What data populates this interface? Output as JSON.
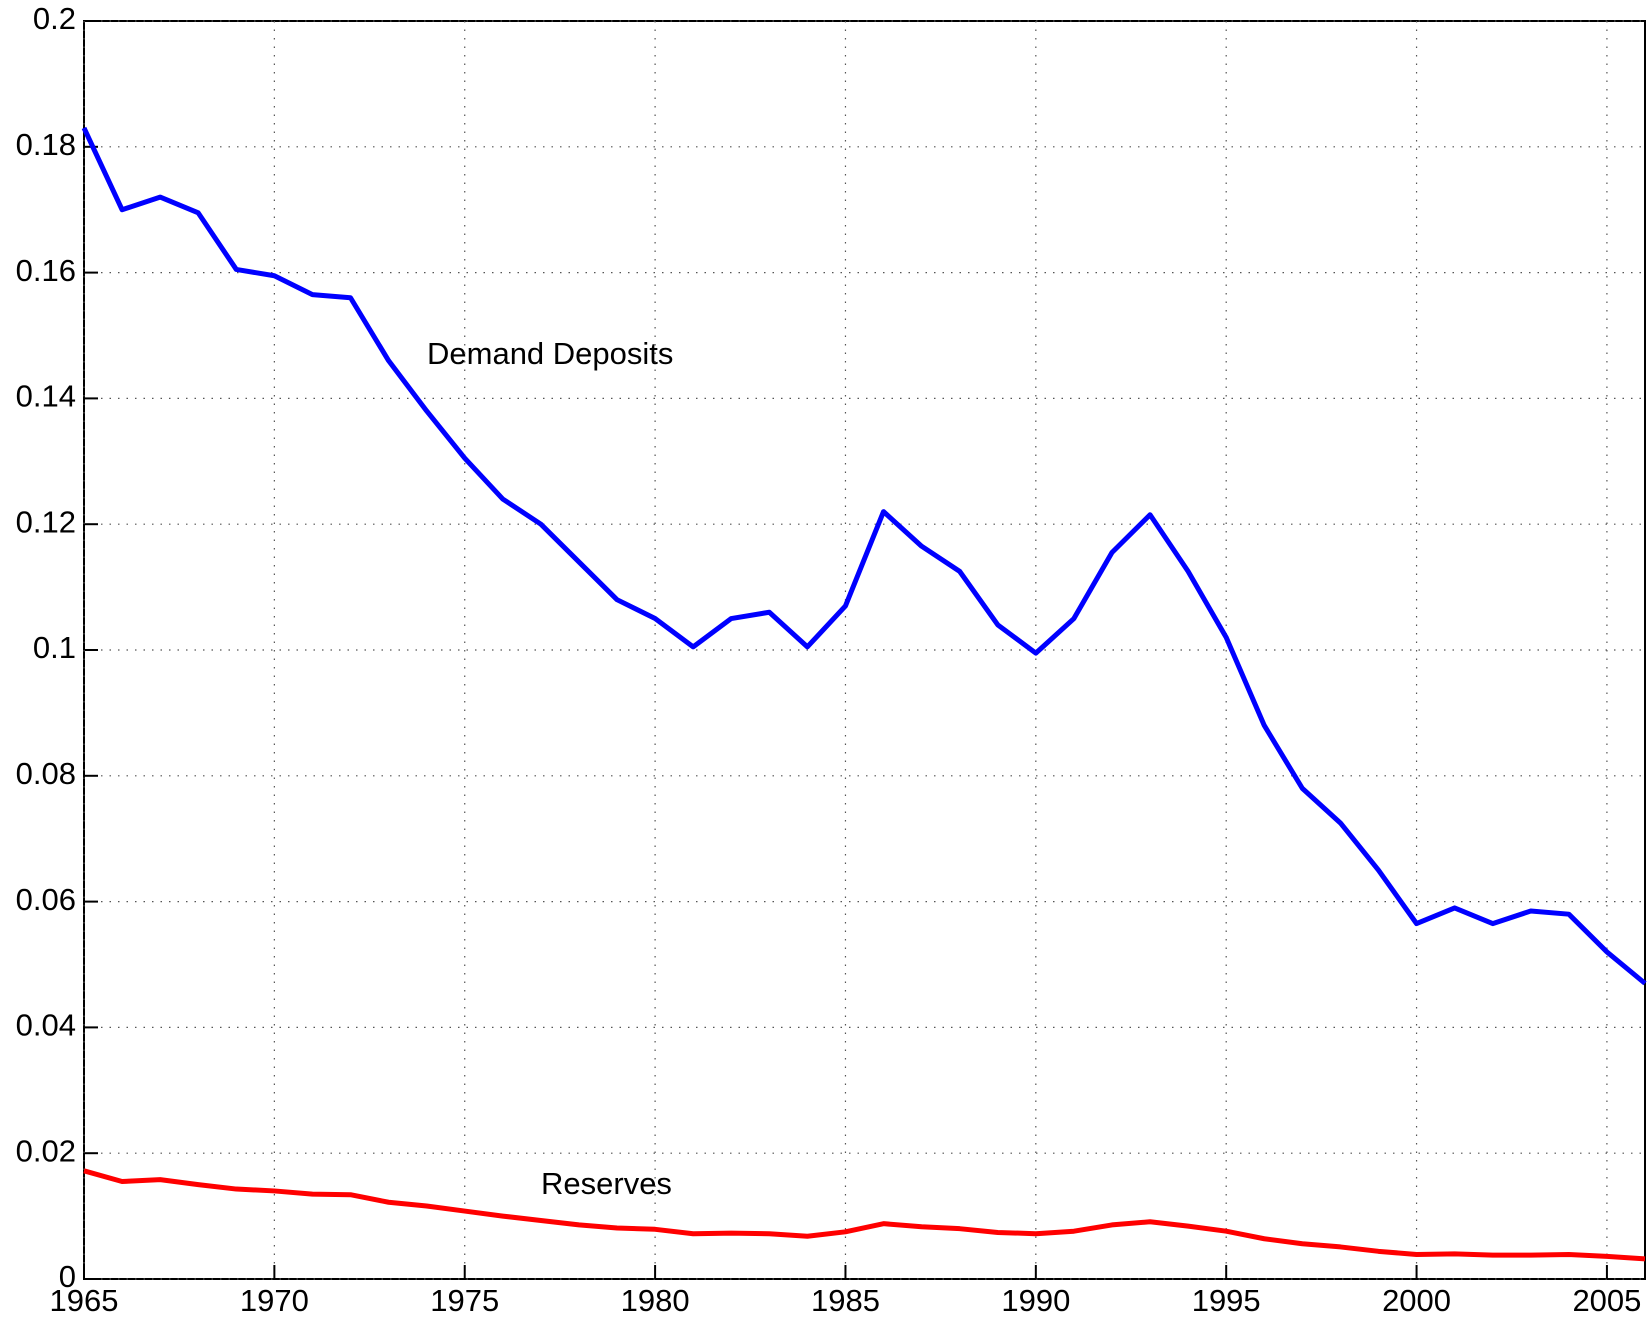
{
  "chart_data": {
    "type": "line",
    "x": [
      1965,
      1966,
      1967,
      1968,
      1969,
      1970,
      1971,
      1972,
      1973,
      1974,
      1975,
      1976,
      1977,
      1978,
      1979,
      1980,
      1981,
      1982,
      1983,
      1984,
      1985,
      1986,
      1987,
      1988,
      1989,
      1990,
      1991,
      1992,
      1993,
      1994,
      1995,
      1996,
      1997,
      1998,
      1999,
      2000,
      2001,
      2002,
      2003,
      2004,
      2005,
      2006
    ],
    "series": [
      {
        "name": "Demand Deposits",
        "color": "#0000ff",
        "values": [
          0.183,
          0.17,
          0.172,
          0.1695,
          0.1605,
          0.1595,
          0.1565,
          0.156,
          0.146,
          0.138,
          0.1305,
          0.124,
          0.12,
          0.114,
          0.108,
          0.105,
          0.1005,
          0.105,
          0.106,
          0.1005,
          0.107,
          0.122,
          0.1165,
          0.1125,
          0.104,
          0.0995,
          0.105,
          0.1155,
          0.1215,
          0.1125,
          0.102,
          0.088,
          0.078,
          0.0725,
          0.065,
          0.0565,
          0.059,
          0.0565,
          0.0585,
          0.058,
          0.052,
          0.047
        ]
      },
      {
        "name": "Reserves",
        "color": "#ff0000",
        "values": [
          0.0172,
          0.0155,
          0.0158,
          0.015,
          0.0143,
          0.014,
          0.0135,
          0.0134,
          0.0122,
          0.0116,
          0.0108,
          0.01,
          0.0093,
          0.0086,
          0.0081,
          0.0079,
          0.0072,
          0.0073,
          0.0072,
          0.0068,
          0.0075,
          0.0088,
          0.0083,
          0.008,
          0.0074,
          0.0072,
          0.0076,
          0.0086,
          0.0091,
          0.0084,
          0.0076,
          0.0064,
          0.0056,
          0.0051,
          0.0044,
          0.0039,
          0.004,
          0.0038,
          0.0038,
          0.0039,
          0.0036,
          0.0032
        ]
      }
    ],
    "xlim": [
      1965,
      2006
    ],
    "xticks": [
      1965,
      1970,
      1975,
      1980,
      1985,
      1990,
      1995,
      2000,
      2005
    ],
    "ylim": [
      0,
      0.2
    ],
    "yticks": [
      0,
      0.02,
      0.04,
      0.06,
      0.08,
      0.1,
      0.12,
      0.14,
      0.16,
      0.18,
      0.2
    ],
    "grid": true
  }
}
